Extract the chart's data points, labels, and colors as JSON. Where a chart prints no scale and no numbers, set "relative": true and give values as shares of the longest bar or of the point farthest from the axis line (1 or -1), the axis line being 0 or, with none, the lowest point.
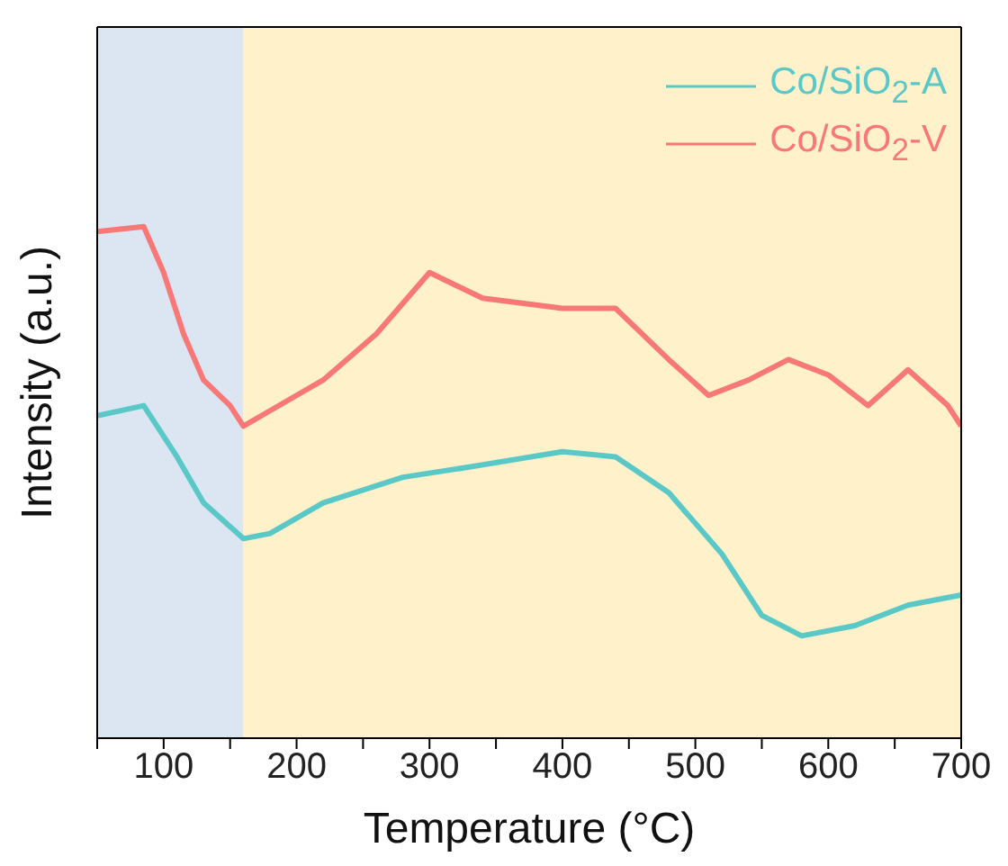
{
  "chart_data": {
    "type": "line",
    "relative": true,
    "xlabel": "Temperature (°C)",
    "ylabel": "Intensity (a.u.)",
    "xlim": [
      50,
      700
    ],
    "xticks": [
      {
        "value": 50,
        "label": null
      },
      100,
      {
        "value": 150,
        "label": null
      },
      200,
      {
        "value": 250,
        "label": null
      },
      300,
      {
        "value": 350,
        "label": null
      },
      400,
      {
        "value": 450,
        "label": null
      },
      500,
      {
        "value": 550,
        "label": null
      },
      600,
      {
        "value": 650,
        "label": null
      },
      700
    ],
    "legend": "top right",
    "marker": "none",
    "line_style": "solid",
    "bands": [
      {
        "axis": "x",
        "from": 50,
        "to": 160,
        "color": "#dce6f3"
      },
      {
        "axis": "x",
        "from": 160,
        "to": 700,
        "color": "#fff1c9"
      }
    ],
    "series": [
      {
        "name": "Co/SiO$_{2}$-A",
        "color": "#5bc8c8",
        "x": [
          50,
          85,
          110,
          130,
          160,
          180,
          220,
          280,
          330,
          400,
          440,
          480,
          520,
          550,
          580,
          620,
          660,
          700
        ],
        "values": [
          0.63,
          0.65,
          0.55,
          0.46,
          0.39,
          0.4,
          0.46,
          0.51,
          0.53,
          0.56,
          0.55,
          0.48,
          0.36,
          0.24,
          0.2,
          0.22,
          0.26,
          0.28
        ]
      },
      {
        "name": "Co/SiO$_{2}$-V",
        "color": "#f87878",
        "x": [
          50,
          85,
          100,
          115,
          130,
          150,
          160,
          180,
          220,
          260,
          300,
          340,
          400,
          440,
          480,
          510,
          540,
          570,
          600,
          630,
          660,
          690,
          700
        ],
        "values": [
          0.99,
          1,
          0.91,
          0.79,
          0.7,
          0.65,
          0.61,
          0.64,
          0.7,
          0.79,
          0.91,
          0.86,
          0.84,
          0.84,
          0.74,
          0.67,
          0.7,
          0.74,
          0.71,
          0.65,
          0.72,
          0.65,
          0.61
        ]
      }
    ]
  }
}
